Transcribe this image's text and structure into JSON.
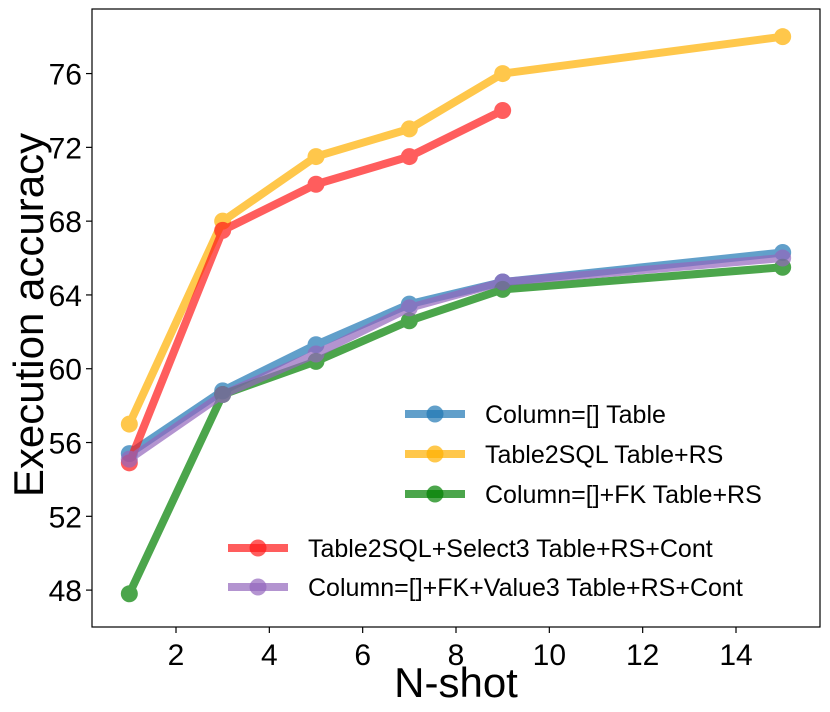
{
  "chart_data": {
    "type": "line",
    "title": "",
    "xlabel": "N-shot",
    "ylabel": "Execution accuracy",
    "xlim": [
      0.2,
      15.8
    ],
    "ylim": [
      46.0,
      79.5
    ],
    "xticks": [
      2,
      4,
      6,
      8,
      10,
      12,
      14
    ],
    "yticks": [
      48,
      52,
      56,
      60,
      64,
      68,
      72,
      76
    ],
    "grid": false,
    "legend_position": "lower-right",
    "series": [
      {
        "name": "Column=[] Table",
        "color": "#1f77b4",
        "x": [
          1,
          3,
          5,
          7,
          9,
          15
        ],
        "values": [
          55.4,
          58.8,
          61.3,
          63.5,
          64.7,
          66.3
        ]
      },
      {
        "name": "Table2SQL Table+RS",
        "color": "#ffb000",
        "x": [
          1,
          3,
          5,
          7,
          9,
          15
        ],
        "values": [
          57.0,
          68.0,
          71.5,
          73.0,
          76.0,
          78.0
        ]
      },
      {
        "name": "Column=[]+FK Table+RS",
        "color": "#008000",
        "x": [
          1,
          3,
          5,
          7,
          9,
          15
        ],
        "values": [
          47.8,
          58.6,
          60.4,
          62.6,
          64.3,
          65.5
        ]
      },
      {
        "name": "Table2SQL+Select3 Table+RS+Cont",
        "color": "#ff1a1a",
        "x": [
          1,
          3,
          5,
          7,
          9
        ],
        "values": [
          54.9,
          67.5,
          70.0,
          71.5,
          74.0
        ]
      },
      {
        "name": "Column=[]+FK+Value3 Table+RS+Cont",
        "color": "#9467bd",
        "x": [
          1,
          3,
          5,
          7,
          9,
          15
        ],
        "values": [
          55.1,
          58.6,
          60.8,
          63.3,
          64.7,
          66.0
        ]
      }
    ]
  }
}
